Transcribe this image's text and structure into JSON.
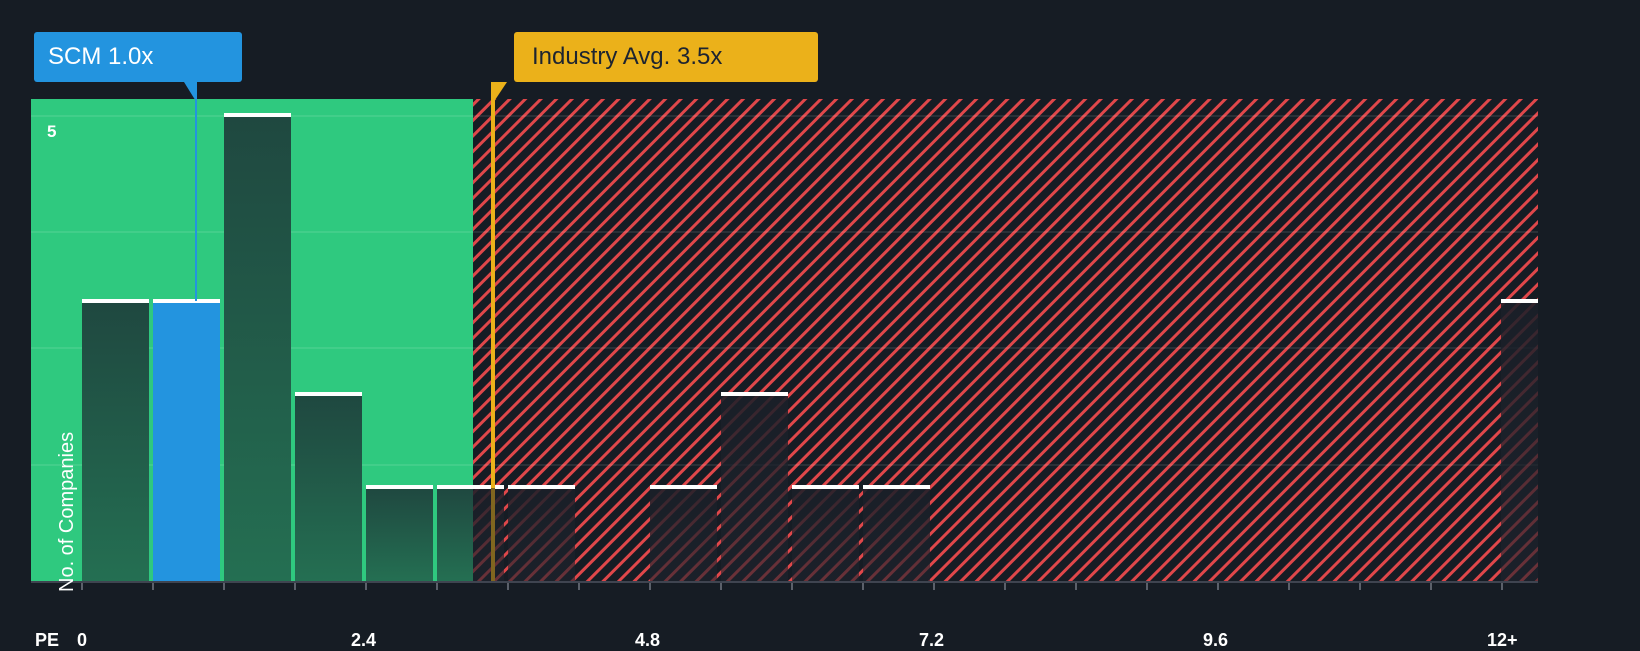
{
  "colors": {
    "background": "#161c24",
    "undervalued_zone": "#2fc97f",
    "overvalued_hatch": "#e0474a",
    "bar_in_green": "#215244",
    "bar_in_red": "#1e232d",
    "highlight_bar": "#2394df",
    "scm_marker": "#2394df",
    "industry_marker": "#ebb11a",
    "bar_cap": "#ffffff",
    "axis": "#3f4450",
    "text": "#ffffff"
  },
  "callouts": {
    "company": {
      "label": "SCM 1.0x",
      "value": 1.0
    },
    "industry": {
      "label": "Industry Avg. 3.5x",
      "value": 3.5
    }
  },
  "axes": {
    "x_prefix": "PE",
    "y_label": "No. of Companies",
    "y_tick_label": "5"
  },
  "chart_data": {
    "type": "bar",
    "title": "",
    "xlabel": "PE",
    "ylabel": "No. of Companies",
    "x_tick_labels": [
      "0",
      "2.4",
      "4.8",
      "7.2",
      "9.6",
      "12+"
    ],
    "x_tick_values": [
      0,
      2.4,
      4.8,
      7.2,
      9.6,
      12
    ],
    "bin_width": 0.6,
    "categories": [
      "0-0.6",
      "0.6-1.2",
      "1.2-1.8",
      "1.8-2.4",
      "2.4-3.0",
      "3.0-3.6",
      "3.6-4.2",
      "4.2-4.8",
      "4.8-5.4",
      "5.4-6.0",
      "6.0-6.6",
      "6.6-7.2",
      "7.2-7.8",
      "7.8-8.4",
      "8.4-9.0",
      "9.0-9.6",
      "9.6-10.2",
      "10.2-10.8",
      "10.8-11.4",
      "11.4-12.0",
      "12+"
    ],
    "values": [
      3,
      3,
      5,
      2,
      1,
      1,
      1,
      0,
      1,
      2,
      1,
      1,
      0,
      0,
      0,
      0,
      0,
      0,
      0,
      0,
      3
    ],
    "highlight_index": 1,
    "y_ticks": [
      5
    ],
    "ylim": [
      0,
      5.2
    ],
    "markers": [
      {
        "name": "SCM",
        "value": 1.0,
        "label": "SCM 1.0x"
      },
      {
        "name": "Industry Avg.",
        "value": 3.5,
        "label": "Industry Avg. 3.5x"
      }
    ],
    "zones": [
      {
        "name": "undervalued",
        "from": 0,
        "to": 3.3,
        "color": "#2fc97f"
      },
      {
        "name": "overvalued",
        "from": 3.3,
        "to": 12.6,
        "color": "hatched-red"
      }
    ],
    "grid": true,
    "legend": "none"
  }
}
